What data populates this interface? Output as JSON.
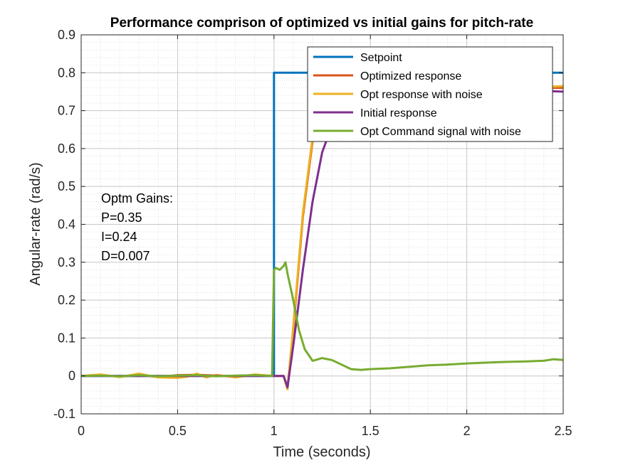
{
  "chart_data": {
    "type": "line",
    "title": "Performance comprison of optimized vs initial gains for pitch-rate",
    "xlabel": "Time (seconds)",
    "ylabel": "Angular-rate (rad/s)",
    "xlim": [
      0,
      2.5
    ],
    "ylim": [
      -0.1,
      0.9
    ],
    "xticks": [
      0,
      0.5,
      1,
      1.5,
      2,
      2.5
    ],
    "xtick_labels": [
      "0",
      "0.5",
      "1",
      "1.5",
      "2",
      "2.5"
    ],
    "yticks": [
      -0.1,
      0,
      0.1,
      0.2,
      0.3,
      0.4,
      0.5,
      0.6,
      0.7,
      0.8,
      0.9
    ],
    "ytick_labels": [
      "-0.1",
      "0",
      "0.1",
      "0.2",
      "0.3",
      "0.4",
      "0.5",
      "0.6",
      "0.7",
      "0.8",
      "0.9"
    ],
    "grid": "major and minor",
    "legend_position": "top-right",
    "annotation": [
      "Optm Gains:",
      "P=0.35",
      "I=0.24",
      "D=0.007"
    ],
    "series": [
      {
        "name": "Setpoint",
        "color": "#0072BD",
        "x": [
          0,
          1.0,
          1.0,
          2.5
        ],
        "y": [
          0,
          0,
          0.8,
          0.8
        ]
      },
      {
        "name": "Optimized response",
        "color": "#D95319",
        "x": [
          0,
          0.1,
          0.2,
          0.3,
          0.4,
          0.5,
          0.6,
          0.7,
          0.8,
          0.9,
          1.0,
          1.05,
          1.07,
          1.1,
          1.15,
          1.2,
          1.25,
          1.3,
          1.4,
          1.5,
          1.6,
          1.8,
          2.0,
          2.2,
          2.4,
          2.5
        ],
        "y": [
          0,
          0.002,
          -0.002,
          0.003,
          -0.003,
          0.002,
          0.003,
          0.001,
          -0.002,
          0.002,
          0,
          0,
          -0.03,
          0.12,
          0.42,
          0.62,
          0.7,
          0.74,
          0.76,
          0.765,
          0.77,
          0.775,
          0.77,
          0.765,
          0.76,
          0.76
        ]
      },
      {
        "name": "Opt response with noise",
        "color": "#EDB120",
        "x": [
          0,
          0.1,
          0.2,
          0.3,
          0.4,
          0.5,
          0.55,
          0.6,
          0.65,
          0.7,
          0.8,
          0.9,
          1.0,
          1.05,
          1.07,
          1.1,
          1.15,
          1.2,
          1.25,
          1.3,
          1.4,
          1.5,
          1.6,
          1.8,
          2.0,
          2.2,
          2.4,
          2.5
        ],
        "y": [
          0,
          0.004,
          -0.003,
          0.006,
          -0.004,
          -0.005,
          -0.002,
          0.006,
          -0.004,
          0.003,
          -0.004,
          0.004,
          0,
          0,
          -0.035,
          0.13,
          0.43,
          0.63,
          0.71,
          0.745,
          0.76,
          0.765,
          0.77,
          0.772,
          0.768,
          0.765,
          0.762,
          0.765
        ]
      },
      {
        "name": "Initial response",
        "color": "#7E2F8E",
        "x": [
          0,
          0.5,
          1.0,
          1.05,
          1.07,
          1.1,
          1.15,
          1.2,
          1.25,
          1.3,
          1.4,
          1.5,
          1.6,
          1.8,
          2.0,
          2.2,
          2.4,
          2.5
        ],
        "y": [
          0,
          0,
          0,
          0,
          -0.03,
          0.08,
          0.28,
          0.46,
          0.59,
          0.66,
          0.72,
          0.745,
          0.755,
          0.76,
          0.76,
          0.755,
          0.752,
          0.75
        ]
      },
      {
        "name": "Opt Command signal with noise",
        "color": "#77AC30",
        "x": [
          0,
          0.1,
          0.2,
          0.3,
          0.4,
          0.5,
          0.6,
          0.7,
          0.8,
          0.9,
          0.99,
          1.0,
          1.01,
          1.03,
          1.05,
          1.06,
          1.07,
          1.1,
          1.13,
          1.16,
          1.2,
          1.25,
          1.3,
          1.35,
          1.4,
          1.45,
          1.5,
          1.6,
          1.7,
          1.8,
          1.9,
          2.0,
          2.1,
          2.2,
          2.3,
          2.4,
          2.45,
          2.5
        ],
        "y": [
          0,
          0.001,
          -0.001,
          0.002,
          -0.001,
          0.001,
          0.002,
          -0.001,
          0.001,
          0.002,
          0,
          0.28,
          0.285,
          0.28,
          0.29,
          0.3,
          0.27,
          0.2,
          0.12,
          0.07,
          0.04,
          0.047,
          0.042,
          0.03,
          0.018,
          0.016,
          0.018,
          0.02,
          0.024,
          0.028,
          0.03,
          0.033,
          0.035,
          0.037,
          0.038,
          0.04,
          0.044,
          0.042
        ]
      }
    ]
  }
}
